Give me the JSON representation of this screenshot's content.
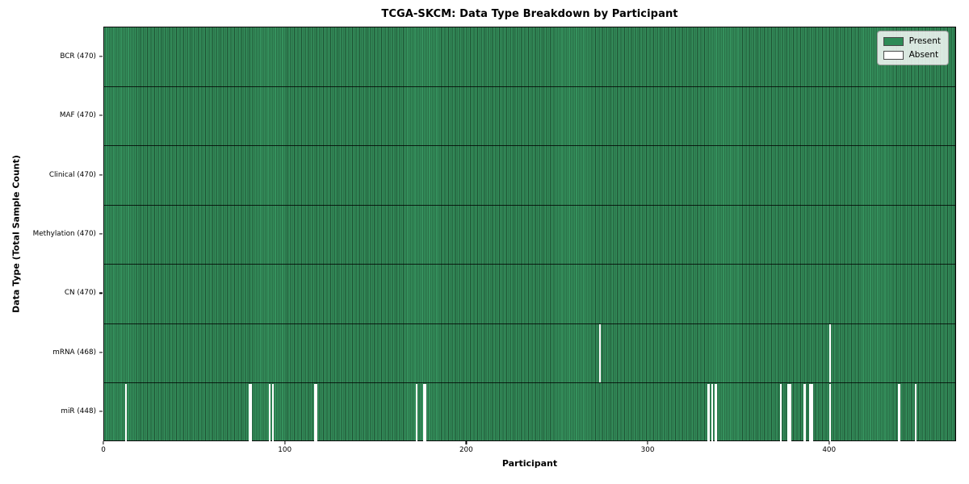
{
  "chart_data": {
    "type": "heatmap",
    "title": "TCGA-SKCM: Data Type Breakdown by Participant",
    "xlabel": "Participant",
    "ylabel": "Data Type (Total Sample Count)",
    "x_ticks": [
      0,
      100,
      200,
      300,
      400
    ],
    "x_range": [
      0,
      470
    ],
    "grid": false,
    "legend_position": "upper right",
    "legend_items": [
      {
        "label": "Present",
        "color": "#2e8b57"
      },
      {
        "label": "Absent",
        "color": "#ffffff"
      }
    ],
    "colors": {
      "present": "#2e8b57",
      "absent": "#ffffff",
      "column_edge": "#1d4f31",
      "row_separator": "#000000"
    },
    "rows": [
      {
        "label": "BCR (470)",
        "data_type": "BCR",
        "total_samples": 470,
        "absent_participants": []
      },
      {
        "label": "MAF (470)",
        "data_type": "MAF",
        "total_samples": 470,
        "absent_participants": []
      },
      {
        "label": "Clinical (470)",
        "data_type": "Clinical",
        "total_samples": 470,
        "absent_participants": []
      },
      {
        "label": "Methylation (470)",
        "data_type": "Methylation",
        "total_samples": 470,
        "absent_participants": []
      },
      {
        "label": "CN (470)",
        "data_type": "CN",
        "total_samples": 470,
        "absent_participants": []
      },
      {
        "label": "mRNA (468)",
        "data_type": "mRNA",
        "total_samples": 468,
        "absent_participants": [
          273,
          400
        ]
      },
      {
        "label": "miR (448)",
        "data_type": "miR",
        "total_samples": 448,
        "absent_participants": [
          12,
          80,
          81,
          91,
          93,
          116,
          117,
          172,
          176,
          177,
          333,
          335,
          337,
          373,
          377,
          378,
          386,
          389,
          390,
          400,
          438,
          447
        ]
      }
    ]
  }
}
